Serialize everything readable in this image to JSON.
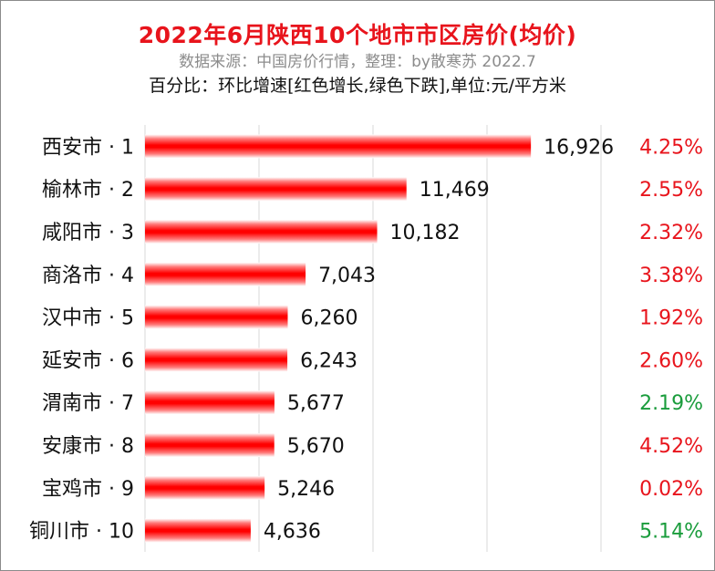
{
  "header": {
    "title": "2022年6月陕西10个地市市区房价(均价)",
    "subtitle": "数据来源：中国房价行情，整理：by散寒苏  2022.7",
    "note": "百分比：环比增速[红色增长,绿色下跌],单位:元/平方米"
  },
  "colors": {
    "bar": "#ff0000",
    "increase": "#e8141c",
    "decrease": "#1a9c3c",
    "grid": "#d9d9d9"
  },
  "chart_data": {
    "type": "bar",
    "orientation": "horizontal",
    "categories": [
      "西安市 · 1",
      "榆林市 · 2",
      "咸阳市 · 3",
      "商洛市 · 4",
      "汉中市 · 5",
      "延安市 · 6",
      "渭南市 · 7",
      "安康市 · 8",
      "宝鸡市 · 9",
      "铜川市 · 10"
    ],
    "values": [
      16926,
      11469,
      10182,
      7043,
      6260,
      6243,
      5677,
      5670,
      5246,
      4636
    ],
    "value_labels": [
      "16,926",
      "11,469",
      "10,182",
      "7,043",
      "6,260",
      "6,243",
      "5,677",
      "5,670",
      "5,246",
      "4,636"
    ],
    "growth_labels": [
      "4.25%",
      "2.55%",
      "2.32%",
      "3.38%",
      "1.92%",
      "2.60%",
      "2.19%",
      "4.52%",
      "0.02%",
      "5.14%"
    ],
    "growth_direction": [
      "up",
      "up",
      "up",
      "up",
      "up",
      "up",
      "down",
      "up",
      "up",
      "down"
    ],
    "xlim": [
      0,
      20000
    ],
    "grid": true,
    "legend": "none"
  }
}
